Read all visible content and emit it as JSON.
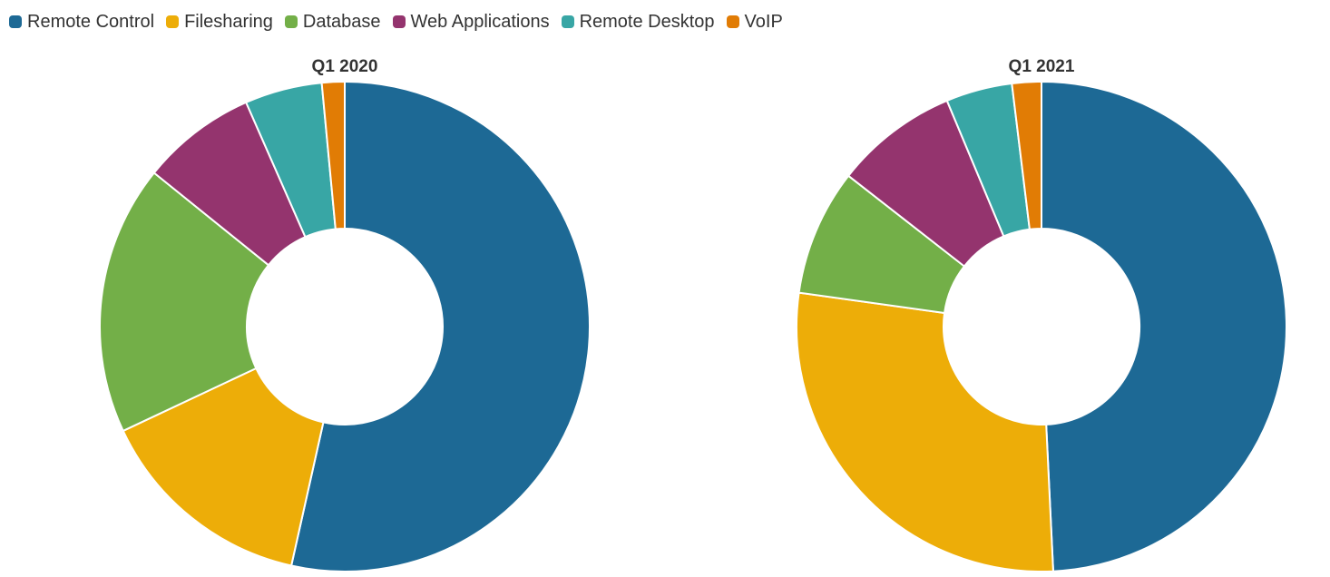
{
  "legend": [
    {
      "name": "Remote Control",
      "color": "#1d6995"
    },
    {
      "name": "Filesharing",
      "color": "#edad08"
    },
    {
      "name": "Database",
      "color": "#73af48"
    },
    {
      "name": "Web Applications",
      "color": "#94346e"
    },
    {
      "name": "Remote Desktop",
      "color": "#38a6a5"
    },
    {
      "name": "VoIP",
      "color": "#e17c05"
    }
  ],
  "chart_data": [
    {
      "type": "pie",
      "title": "Q1 2020",
      "donut": true,
      "legend_position": "top-left",
      "series": [
        {
          "name": "Remote Control",
          "value": 53.5
        },
        {
          "name": "Filesharing",
          "value": 14.5
        },
        {
          "name": "Database",
          "value": 17.8
        },
        {
          "name": "Web Applications",
          "value": 7.6
        },
        {
          "name": "Remote Desktop",
          "value": 5.1
        },
        {
          "name": "VoIP",
          "value": 1.5
        }
      ]
    },
    {
      "type": "pie",
      "title": "Q1 2021",
      "donut": true,
      "legend_position": "top-left",
      "series": [
        {
          "name": "Remote Control",
          "value": 48.4
        },
        {
          "name": "Filesharing",
          "value": 27.5
        },
        {
          "name": "Database",
          "value": 8.2
        },
        {
          "name": "Web Applications",
          "value": 8.0
        },
        {
          "name": "Remote Desktop",
          "value": 4.3
        },
        {
          "name": "VoIP",
          "value": 1.9
        }
      ]
    }
  ]
}
